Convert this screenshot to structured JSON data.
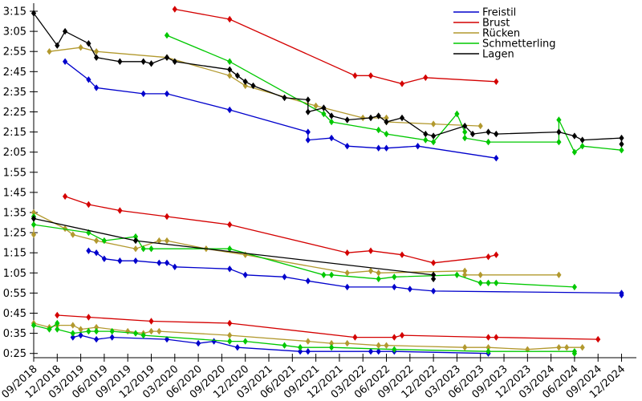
{
  "figure": {
    "background": "#ffffff",
    "kind": "swim-times-progression-chart"
  },
  "chart_data": {
    "type": "line",
    "title": "",
    "xlabel": "",
    "ylabel": "",
    "grid": false,
    "x_axis": {
      "tick_labels": [
        "09/2018",
        "12/2018",
        "03/2019",
        "06/2019",
        "09/2019",
        "12/2019",
        "03/2020",
        "06/2020",
        "09/2020",
        "12/2020",
        "03/2021",
        "06/2021",
        "09/2021",
        "12/2021",
        "03/2022",
        "06/2022",
        "09/2022",
        "12/2022",
        "03/2023",
        "06/2023",
        "09/2023",
        "12/2023",
        "03/2024",
        "06/2024",
        "09/2024",
        "12/2024"
      ],
      "label_rotation_deg": 42
    },
    "y_axis": {
      "tick_labels": [
        "0:25",
        "0:35",
        "0:45",
        "0:55",
        "1:05",
        "1:15",
        "1:25",
        "1:35",
        "1:45",
        "1:55",
        "2:05",
        "2:15",
        "2:25",
        "2:35",
        "2:45",
        "2:55",
        "3:05",
        "3:15"
      ],
      "range": [
        "0:25",
        "3:15"
      ],
      "unit": "min:sec"
    },
    "legend": {
      "position": "top-right",
      "entries": [
        {
          "label": "Freistil",
          "color": "#0000cc"
        },
        {
          "label": "Brust",
          "color": "#d40000"
        },
        {
          "label": "Rücken",
          "color": "#b2992e"
        },
        {
          "label": "Schmetterling",
          "color": "#00c800"
        },
        {
          "label": "Lagen",
          "color": "#000000"
        }
      ]
    },
    "series": [
      {
        "name": "Freistil",
        "cluster": "top",
        "color": "#0000cc",
        "points": [
          [
            "01/2019",
            "2:50"
          ],
          [
            "04/2019",
            "2:41"
          ],
          [
            "05/2019",
            "2:37"
          ],
          [
            "11/2019",
            "2:34"
          ],
          [
            "02/2020",
            "2:34"
          ],
          [
            "10/2020",
            "2:26"
          ],
          [
            "08/2021",
            "2:15"
          ],
          [
            "08/2021",
            "2:11"
          ],
          [
            "11/2021",
            "2:12"
          ],
          [
            "01/2022",
            "2:08"
          ],
          [
            "05/2022",
            "2:07"
          ],
          [
            "06/2022",
            "2:07"
          ],
          [
            "10/2022",
            "2:08"
          ],
          [
            "08/2023",
            "2:02"
          ]
        ]
      },
      {
        "name": "Brust",
        "cluster": "top",
        "color": "#d40000",
        "points": [
          [
            "03/2020",
            "3:16"
          ],
          [
            "10/2020",
            "3:11"
          ],
          [
            "02/2022",
            "2:43"
          ],
          [
            "04/2022",
            "2:43"
          ],
          [
            "08/2022",
            "2:39"
          ],
          [
            "11/2022",
            "2:42"
          ],
          [
            "08/2023",
            "2:40"
          ]
        ]
      },
      {
        "name": "Rücken",
        "cluster": "top",
        "color": "#b2992e",
        "points": [
          [
            "11/2018",
            "2:55"
          ],
          [
            "03/2019",
            "2:57"
          ],
          [
            "05/2019",
            "2:55"
          ],
          [
            "02/2020",
            "2:52"
          ],
          [
            "10/2020",
            "2:43"
          ],
          [
            "12/2020",
            "2:38"
          ],
          [
            "09/2021",
            "2:28"
          ],
          [
            "03/2022",
            "2:22"
          ],
          [
            "06/2022",
            "2:22"
          ],
          [
            "06/2022",
            "2:20"
          ],
          [
            "12/2022",
            "2:19"
          ],
          [
            "06/2023",
            "2:18"
          ]
        ]
      },
      {
        "name": "Schmetterling",
        "cluster": "top",
        "color": "#00c800",
        "points": [
          [
            "02/2020",
            "3:03"
          ],
          [
            "10/2020",
            "2:50"
          ],
          [
            "10/2021",
            "2:24"
          ],
          [
            "11/2021",
            "2:20"
          ],
          [
            "05/2022",
            "2:16"
          ],
          [
            "06/2022",
            "2:14"
          ],
          [
            "11/2022",
            "2:11"
          ],
          [
            "12/2022",
            "2:10"
          ],
          [
            "03/2023",
            "2:24"
          ],
          [
            "04/2023",
            "2:15"
          ],
          [
            "04/2023",
            "2:12"
          ],
          [
            "07/2023",
            "2:10"
          ],
          [
            "04/2024",
            "2:10"
          ],
          [
            "04/2024",
            "2:21"
          ],
          [
            "06/2024",
            "2:05"
          ],
          [
            "07/2024",
            "2:08"
          ],
          [
            "12/2024",
            "2:06"
          ]
        ]
      },
      {
        "name": "Lagen",
        "cluster": "top",
        "color": "#000000",
        "points": [
          [
            "09/2018",
            "3:14"
          ],
          [
            "12/2018",
            "2:58"
          ],
          [
            "01/2019",
            "3:05"
          ],
          [
            "04/2019",
            "2:59"
          ],
          [
            "05/2019",
            "2:52"
          ],
          [
            "08/2019",
            "2:50"
          ],
          [
            "11/2019",
            "2:50"
          ],
          [
            "12/2019",
            "2:49"
          ],
          [
            "02/2020",
            "2:52"
          ],
          [
            "03/2020",
            "2:50"
          ],
          [
            "10/2020",
            "2:46"
          ],
          [
            "11/2020",
            "2:43"
          ],
          [
            "12/2020",
            "2:40"
          ],
          [
            "01/2021",
            "2:38"
          ],
          [
            "05/2021",
            "2:32"
          ],
          [
            "08/2021",
            "2:31"
          ],
          [
            "08/2021",
            "2:25"
          ],
          [
            "10/2021",
            "2:27"
          ],
          [
            "11/2021",
            "2:23"
          ],
          [
            "01/2022",
            "2:21"
          ],
          [
            "04/2022",
            "2:22"
          ],
          [
            "05/2022",
            "2:23"
          ],
          [
            "06/2022",
            "2:20"
          ],
          [
            "08/2022",
            "2:22"
          ],
          [
            "11/2022",
            "2:14"
          ],
          [
            "12/2022",
            "2:13"
          ],
          [
            "04/2023",
            "2:18"
          ],
          [
            "05/2023",
            "2:14"
          ],
          [
            "07/2023",
            "2:15"
          ],
          [
            "08/2023",
            "2:14"
          ],
          [
            "04/2024",
            "2:15"
          ],
          [
            "06/2024",
            "2:13"
          ],
          [
            "07/2024",
            "2:11"
          ],
          [
            "12/2024",
            "2:12"
          ],
          [
            "12/2024",
            "2:09"
          ]
        ]
      },
      {
        "name": "Freistil",
        "cluster": "middle",
        "color": "#0000cc",
        "points": [
          [
            "04/2019",
            "1:16"
          ],
          [
            "05/2019",
            "1:15"
          ],
          [
            "06/2019",
            "1:12"
          ],
          [
            "08/2019",
            "1:11"
          ],
          [
            "10/2019",
            "1:11"
          ],
          [
            "01/2020",
            "1:10"
          ],
          [
            "02/2020",
            "1:10"
          ],
          [
            "03/2020",
            "1:08"
          ],
          [
            "10/2020",
            "1:07"
          ],
          [
            "12/2020",
            "1:04"
          ],
          [
            "05/2021",
            "1:03"
          ],
          [
            "08/2021",
            "1:01"
          ],
          [
            "01/2022",
            "0:58"
          ],
          [
            "07/2022",
            "0:58"
          ],
          [
            "09/2022",
            "0:57"
          ],
          [
            "12/2022",
            "0:56"
          ],
          [
            "12/2024",
            "0:55"
          ],
          [
            "12/2024",
            "0:54"
          ]
        ]
      },
      {
        "name": "Brust",
        "cluster": "middle",
        "color": "#d40000",
        "points": [
          [
            "01/2019",
            "1:43"
          ],
          [
            "04/2019",
            "1:39"
          ],
          [
            "08/2019",
            "1:36"
          ],
          [
            "02/2020",
            "1:33"
          ],
          [
            "10/2020",
            "1:29"
          ],
          [
            "01/2022",
            "1:15"
          ],
          [
            "04/2022",
            "1:16"
          ],
          [
            "08/2022",
            "1:14"
          ],
          [
            "12/2022",
            "1:10"
          ],
          [
            "07/2023",
            "1:13"
          ],
          [
            "08/2023",
            "1:14"
          ]
        ]
      },
      {
        "name": "Rücken",
        "cluster": "middle",
        "color": "#b2992e",
        "points": [
          [
            "09/2018",
            "1:24"
          ],
          [
            "09/2018",
            "1:35"
          ],
          [
            "01/2019",
            "1:27"
          ],
          [
            "02/2019",
            "1:24"
          ],
          [
            "05/2019",
            "1:21"
          ],
          [
            "10/2019",
            "1:17"
          ],
          [
            "01/2020",
            "1:21"
          ],
          [
            "02/2020",
            "1:21"
          ],
          [
            "07/2020",
            "1:17"
          ],
          [
            "12/2020",
            "1:14"
          ],
          [
            "01/2022",
            "1:05"
          ],
          [
            "04/2022",
            "1:06"
          ],
          [
            "05/2022",
            "1:05"
          ],
          [
            "04/2023",
            "1:06"
          ],
          [
            "04/2023",
            "1:04"
          ],
          [
            "06/2023",
            "1:04"
          ],
          [
            "04/2024",
            "1:04"
          ]
        ]
      },
      {
        "name": "Schmetterling",
        "cluster": "middle",
        "color": "#00c800",
        "points": [
          [
            "09/2018",
            "1:33"
          ],
          [
            "09/2018",
            "1:29"
          ],
          [
            "04/2019",
            "1:25"
          ],
          [
            "06/2019",
            "1:21"
          ],
          [
            "10/2019",
            "1:23"
          ],
          [
            "11/2019",
            "1:17"
          ],
          [
            "12/2019",
            "1:17"
          ],
          [
            "10/2020",
            "1:17"
          ],
          [
            "10/2021",
            "1:04"
          ],
          [
            "11/2021",
            "1:04"
          ],
          [
            "05/2022",
            "1:02"
          ],
          [
            "07/2022",
            "1:03"
          ],
          [
            "03/2023",
            "1:04"
          ],
          [
            "06/2023",
            "1:00"
          ],
          [
            "07/2023",
            "1:00"
          ],
          [
            "08/2023",
            "1:00"
          ],
          [
            "06/2024",
            "0:58"
          ]
        ]
      },
      {
        "name": "Lagen",
        "cluster": "middle",
        "color": "#000000",
        "points": [
          [
            "09/2018",
            "1:32"
          ],
          [
            "10/2019",
            "1:21"
          ],
          [
            "12/2022",
            "1:04"
          ],
          [
            "12/2022",
            "1:02"
          ]
        ]
      },
      {
        "name": "Freistil",
        "cluster": "bottom",
        "color": "#0000cc",
        "points": [
          [
            "02/2019",
            "0:33"
          ],
          [
            "03/2019",
            "0:34"
          ],
          [
            "05/2019",
            "0:32"
          ],
          [
            "07/2019",
            "0:33"
          ],
          [
            "02/2020",
            "0:32"
          ],
          [
            "06/2020",
            "0:30"
          ],
          [
            "08/2020",
            "0:31"
          ],
          [
            "11/2020",
            "0:28"
          ],
          [
            "07/2021",
            "0:26"
          ],
          [
            "08/2021",
            "0:26"
          ],
          [
            "04/2022",
            "0:26"
          ],
          [
            "05/2022",
            "0:26"
          ],
          [
            "07/2022",
            "0:26"
          ],
          [
            "07/2023",
            "0:25"
          ]
        ]
      },
      {
        "name": "Brust",
        "cluster": "bottom",
        "color": "#d40000",
        "points": [
          [
            "12/2018",
            "0:44"
          ],
          [
            "04/2019",
            "0:43"
          ],
          [
            "12/2019",
            "0:41"
          ],
          [
            "10/2020",
            "0:40"
          ],
          [
            "02/2022",
            "0:33"
          ],
          [
            "07/2022",
            "0:33"
          ],
          [
            "08/2022",
            "0:34"
          ],
          [
            "07/2023",
            "0:33"
          ],
          [
            "08/2023",
            "0:33"
          ],
          [
            "09/2024",
            "0:32"
          ]
        ]
      },
      {
        "name": "Rücken",
        "cluster": "bottom",
        "color": "#b2992e",
        "points": [
          [
            "09/2018",
            "0:40"
          ],
          [
            "11/2018",
            "0:38"
          ],
          [
            "12/2018",
            "0:39"
          ],
          [
            "02/2019",
            "0:39"
          ],
          [
            "03/2019",
            "0:37"
          ],
          [
            "05/2019",
            "0:38"
          ],
          [
            "09/2019",
            "0:36"
          ],
          [
            "11/2019",
            "0:35"
          ],
          [
            "12/2019",
            "0:36"
          ],
          [
            "01/2020",
            "0:36"
          ],
          [
            "10/2020",
            "0:34"
          ],
          [
            "08/2021",
            "0:31"
          ],
          [
            "11/2021",
            "0:30"
          ],
          [
            "11/2021",
            "0:30"
          ],
          [
            "01/2022",
            "0:30"
          ],
          [
            "05/2022",
            "0:29"
          ],
          [
            "06/2022",
            "0:29"
          ],
          [
            "04/2023",
            "0:28"
          ],
          [
            "07/2023",
            "0:28"
          ],
          [
            "12/2023",
            "0:27"
          ],
          [
            "04/2024",
            "0:28"
          ],
          [
            "05/2024",
            "0:28"
          ],
          [
            "07/2024",
            "0:28"
          ]
        ]
      },
      {
        "name": "Schmetterling",
        "cluster": "bottom",
        "color": "#00c800",
        "points": [
          [
            "09/2018",
            "0:39"
          ],
          [
            "11/2018",
            "0:37"
          ],
          [
            "12/2018",
            "0:40"
          ],
          [
            "12/2018",
            "0:37"
          ],
          [
            "02/2019",
            "0:35"
          ],
          [
            "04/2019",
            "0:36"
          ],
          [
            "05/2019",
            "0:36"
          ],
          [
            "07/2019",
            "0:36"
          ],
          [
            "10/2019",
            "0:35"
          ],
          [
            "11/2019",
            "0:34"
          ],
          [
            "10/2020",
            "0:31"
          ],
          [
            "12/2020",
            "0:31"
          ],
          [
            "05/2021",
            "0:29"
          ],
          [
            "07/2021",
            "0:28"
          ],
          [
            "11/2021",
            "0:28"
          ],
          [
            "07/2022",
            "0:27"
          ],
          [
            "07/2023",
            "0:26"
          ],
          [
            "06/2024",
            "0:26"
          ],
          [
            "06/2024",
            "0:25"
          ]
        ]
      }
    ]
  }
}
